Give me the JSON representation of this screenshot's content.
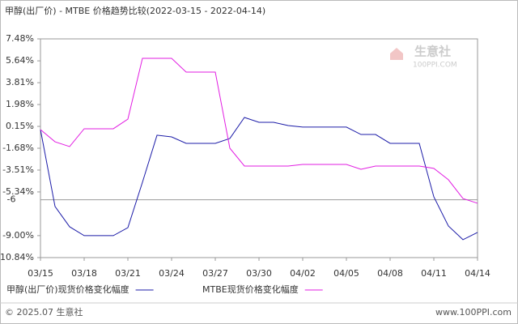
{
  "chart_data": {
    "type": "line",
    "title": "甲醇(出厂价) - MTBE 价格趋势比较(2022-03-15 - 2022-04-14)",
    "categories": [
      "03/15",
      null,
      null,
      "03/18",
      null,
      null,
      "03/21",
      null,
      null,
      "03/24",
      null,
      null,
      "03/27",
      null,
      null,
      "03/30",
      null,
      null,
      "04/02",
      null,
      null,
      "04/05",
      null,
      null,
      "04/08",
      null,
      null,
      "04/11",
      null,
      null,
      "04/14"
    ],
    "series": [
      {
        "name": "甲醇(出厂价)现货价格变化幅度",
        "color": "#1c1ca8",
        "values": [
          -0.12,
          -6.56,
          -8.26,
          -9.0,
          -9.0,
          -9.0,
          -8.33,
          -4.53,
          -0.59,
          -0.73,
          -1.27,
          -1.27,
          -1.27,
          -0.86,
          0.9,
          0.49,
          0.49,
          0.22,
          0.09,
          0.09,
          0.09,
          0.09,
          -0.53,
          -0.53,
          -1.27,
          -1.27,
          -1.27,
          -5.75,
          -8.19,
          -9.34,
          -8.73
        ]
      },
      {
        "name": "MTBE现货价格变化幅度",
        "color": "#e21ee2",
        "values": [
          -0.12,
          -1.14,
          -1.54,
          -0.05,
          -0.05,
          -0.05,
          0.76,
          5.85,
          5.85,
          5.85,
          4.7,
          4.7,
          4.7,
          -1.68,
          -3.17,
          -3.17,
          -3.17,
          -3.17,
          -3.04,
          -3.04,
          -3.04,
          -3.04,
          -3.44,
          -3.17,
          -3.17,
          -3.17,
          -3.17,
          -3.37,
          -4.32,
          -5.89,
          -6.29
        ]
      }
    ],
    "ylim": [
      -10.84,
      7.48
    ],
    "yticks": [
      {
        "value": 7.48,
        "label": "7.48%"
      },
      {
        "value": 5.64,
        "label": "5.64%"
      },
      {
        "value": 3.81,
        "label": "3.81%"
      },
      {
        "value": 1.98,
        "label": "1.98%"
      },
      {
        "value": 0.15,
        "label": "0.15%"
      },
      {
        "value": -1.68,
        "label": "-1.68%"
      },
      {
        "value": -3.51,
        "label": "-3.51%"
      },
      {
        "value": -5.34,
        "label": "-5.34%"
      },
      {
        "value": -9.0,
        "label": "-9.00%"
      },
      {
        "value": -10.84,
        "label": "-10.84%"
      }
    ],
    "reference_line": -6,
    "grid": false
  },
  "watermark": {
    "name": "生意社",
    "url": "100PPI.COM"
  },
  "footer": {
    "left": "© 2025.07 生意社",
    "right": "www.100PPI.com"
  }
}
